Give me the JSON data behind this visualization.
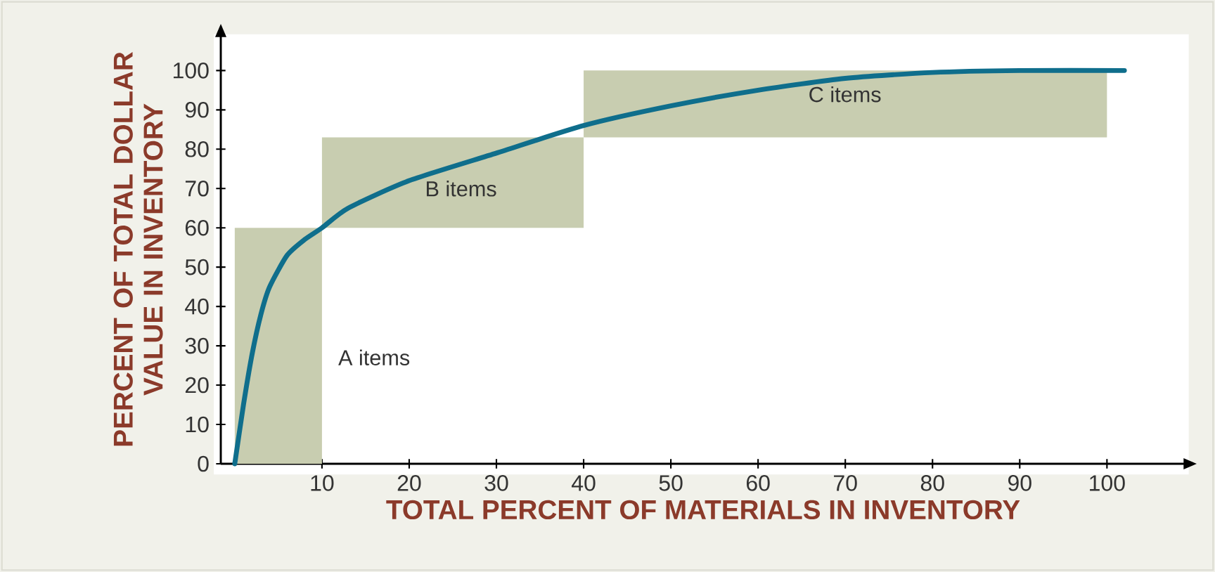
{
  "chart_data": {
    "type": "line",
    "xlabel": "TOTAL PERCENT OF MATERIALS IN INVENTORY",
    "ylabel": "PERCENT OF TOTAL DOLLAR VALUE IN INVENTORY",
    "xlim": [
      -1.6,
      109
    ],
    "ylim": [
      0,
      109
    ],
    "xticks": [
      10,
      20,
      30,
      40,
      50,
      60,
      70,
      80,
      90,
      100
    ],
    "yticks": [
      0,
      10,
      20,
      30,
      40,
      50,
      60,
      70,
      80,
      90,
      100
    ],
    "grid": false,
    "marker": "none",
    "line_style": "solid",
    "series": [
      {
        "type": "histogram",
        "color": "#c8cdb0",
        "bins": [
          0,
          10,
          40,
          100
        ],
        "base": [
          0,
          60,
          83
        ],
        "values": [
          60,
          23,
          17
        ]
      },
      {
        "color": "#0f6e8c",
        "x": [
          0,
          1,
          2,
          3,
          4,
          6,
          8,
          10,
          13,
          20,
          30,
          40,
          50,
          60,
          70,
          80,
          90,
          102
        ],
        "values": [
          0,
          15,
          28,
          38,
          45,
          53,
          57,
          60,
          65,
          72,
          79,
          86,
          91,
          95,
          98,
          99.5,
          100,
          100
        ]
      }
    ],
    "annotations": [
      "A items",
      "B items",
      "C items"
    ]
  }
}
